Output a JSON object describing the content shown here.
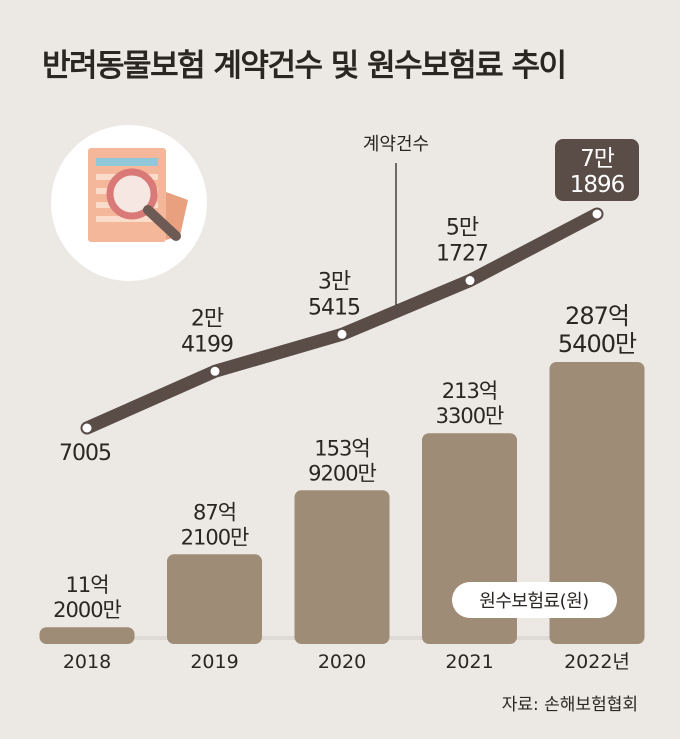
{
  "title": "반려동물보험 계약건수 및 원수보험료 추이",
  "source": "자료: 손해보험협회",
  "colors": {
    "background": "#ece9e5",
    "bar": "#9e8c77",
    "line": "#5a4d48",
    "highlight_box": "#5a4d48",
    "text": "#2a2624"
  },
  "chart_data": {
    "type": "bar",
    "categories": [
      "2018",
      "2019",
      "2020",
      "2021",
      "2022년"
    ],
    "series": [
      {
        "name": "원수보험료(원)",
        "type": "bar",
        "values": [
          1120000000,
          8721000000,
          15392000000,
          21333000000,
          28754000000
        ],
        "labels": [
          [
            "11억",
            "2000만"
          ],
          [
            "87억",
            "2100만"
          ],
          [
            "153억",
            "9200만"
          ],
          [
            "213억",
            "3300만"
          ],
          [
            "287억",
            "5400만"
          ]
        ]
      },
      {
        "name": "계약건수",
        "type": "line",
        "values": [
          7005,
          24199,
          35415,
          51727,
          71896
        ],
        "labels": [
          [
            "7005"
          ],
          [
            "2만",
            "4199"
          ],
          [
            "3만",
            "5415"
          ],
          [
            "5만",
            "1727"
          ],
          [
            "7만",
            "1896"
          ]
        ]
      }
    ],
    "icons": [
      "document-magnifier-icon"
    ]
  }
}
